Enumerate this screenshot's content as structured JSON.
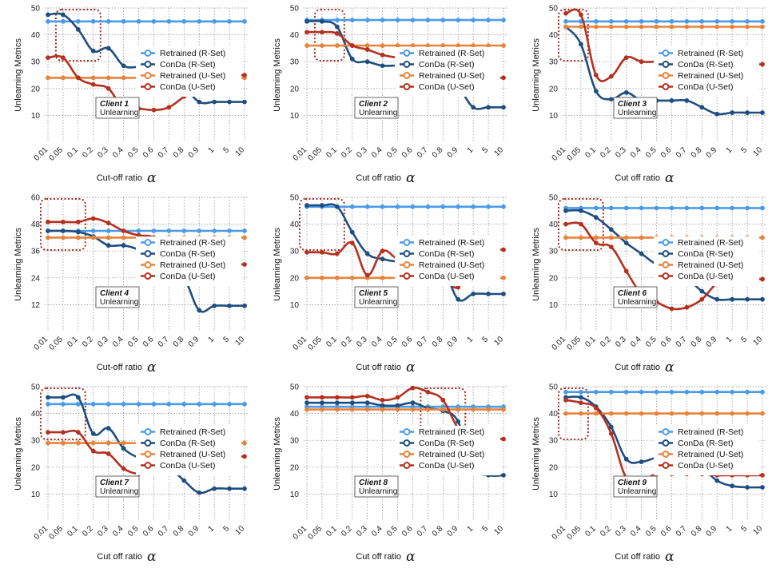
{
  "colors": {
    "retrained_r": "#4a9be8",
    "conda_r": "#1f4e80",
    "retrained_u": "#e8833a",
    "conda_u": "#b5301f",
    "highlight_box": "#a82a20",
    "grid": "#8a8a8a"
  },
  "chart_data": [
    {
      "type": "line",
      "title": "",
      "xlabel": "Cut-off ratio",
      "xlabel_symbol": "α",
      "ylabel": "Unlearning Metrics",
      "categories": [
        "0.01",
        "0.05",
        "0.1",
        "0.2",
        "0.3",
        "0.4",
        "0.5",
        "0.6",
        "0.7",
        "0.8",
        "0.9",
        "1",
        "5",
        "10"
      ],
      "yticks": [
        10,
        20,
        30,
        40,
        50
      ],
      "ylim": [
        0,
        50
      ],
      "annotation": {
        "line1": "Client 1",
        "line2": "Unlearning"
      },
      "highlight": [
        0.05,
        0.2
      ],
      "series": [
        {
          "name": "Retrained (R-Set)",
          "color_key": "retrained_r",
          "values": [
            45,
            45,
            45,
            45,
            45,
            45,
            45,
            45,
            45,
            45,
            45,
            45,
            45,
            45
          ]
        },
        {
          "name": "ConDa (R-Set)",
          "color_key": "conda_r",
          "values": [
            47.5,
            47.5,
            42,
            34,
            35,
            28.5,
            28,
            27.5,
            25.5,
            21,
            15,
            15,
            15,
            15
          ]
        },
        {
          "name": "Retrained (U-Set)",
          "color_key": "retrained_u",
          "values": [
            24,
            24,
            24,
            24,
            24,
            24,
            24,
            24,
            24,
            24,
            24,
            24,
            24,
            24
          ]
        },
        {
          "name": "ConDa (U-Set)",
          "color_key": "conda_u",
          "values": [
            31.5,
            31.5,
            24,
            21.5,
            20,
            12.5,
            12.5,
            12,
            13,
            17,
            21,
            25,
            25,
            25
          ]
        }
      ]
    },
    {
      "type": "line",
      "title": "",
      "xlabel": "Cut off ratio",
      "xlabel_symbol": "α",
      "ylabel": "Unlearning Metrics",
      "categories": [
        "0.01",
        "0.05",
        "0.1",
        "0.2",
        "0.3",
        "0.4",
        "0.5",
        "0.6",
        "0.7",
        "0.8",
        "0.9",
        "1",
        "5",
        "10"
      ],
      "yticks": [
        10,
        20,
        30,
        40,
        50
      ],
      "ylim": [
        0,
        50
      ],
      "annotation": {
        "line1": "Client 2",
        "line2": "Unlearning"
      },
      "highlight": [
        0.05,
        0.1
      ],
      "series": [
        {
          "name": "Retrained (R-Set)",
          "color_key": "retrained_r",
          "values": [
            45.5,
            45.5,
            45.5,
            45.5,
            45.5,
            45.5,
            45.5,
            45.5,
            45.5,
            45.5,
            45.5,
            45.5,
            45.5,
            45.5
          ]
        },
        {
          "name": "ConDa (R-Set)",
          "color_key": "conda_r",
          "values": [
            45,
            45,
            43,
            31,
            30,
            28.5,
            28.5,
            27.5,
            29,
            27,
            21,
            13,
            13,
            13
          ]
        },
        {
          "name": "Retrained (U-Set)",
          "color_key": "retrained_u",
          "values": [
            36,
            36,
            36,
            36,
            36,
            36,
            36,
            36,
            36,
            36,
            36,
            36,
            36,
            36
          ]
        },
        {
          "name": "ConDa (U-Set)",
          "color_key": "conda_u",
          "values": [
            41,
            41,
            40.5,
            36,
            34.5,
            32.5,
            31.5,
            31,
            31,
            32,
            21,
            24.5,
            24,
            24
          ]
        }
      ]
    },
    {
      "type": "line",
      "title": "",
      "xlabel": "Cut off ratio",
      "xlabel_symbol": "α",
      "ylabel": "Unlearning Metrics",
      "categories": [
        "0.01",
        "0.05",
        "0.1",
        "0.2",
        "0.3",
        "0.4",
        "0.5",
        "0.6",
        "0.7",
        "0.8",
        "0.9",
        "1",
        "5",
        "10"
      ],
      "yticks": [
        10,
        20,
        30,
        40,
        50
      ],
      "ylim": [
        0,
        50
      ],
      "annotation": {
        "line1": "Client 3",
        "line2": "Unlearning"
      },
      "highlight": [
        0.01,
        0.05
      ],
      "series": [
        {
          "name": "Retrained (R-Set)",
          "color_key": "retrained_r",
          "values": [
            45,
            45,
            45,
            45,
            45,
            45,
            45,
            45,
            45,
            45,
            45,
            45,
            45,
            45
          ]
        },
        {
          "name": "ConDa (R-Set)",
          "color_key": "conda_r",
          "values": [
            43,
            36.5,
            19,
            16,
            18.5,
            15.5,
            15.5,
            15.5,
            15.5,
            13,
            10.5,
            11,
            11,
            11
          ]
        },
        {
          "name": "Retrained (U-Set)",
          "color_key": "retrained_u",
          "values": [
            43,
            43,
            43,
            43,
            43,
            43,
            43,
            43,
            43,
            43,
            43,
            43,
            43,
            43
          ]
        },
        {
          "name": "ConDa (U-Set)",
          "color_key": "conda_u",
          "values": [
            48,
            47.5,
            25,
            24.5,
            31.5,
            30,
            30,
            30,
            30,
            29,
            29,
            29,
            29,
            29
          ]
        }
      ]
    },
    {
      "type": "line",
      "title": "",
      "xlabel": "Cut-off ratio",
      "xlabel_symbol": "α",
      "ylabel": "Unlearning Metrics",
      "categories": [
        "0.01",
        "0.05",
        "0.1",
        "0.2",
        "0.3",
        "0.4",
        "0.5",
        "0.6",
        "0.7",
        "0.8",
        "0.9",
        "1",
        "5",
        "10"
      ],
      "yticks": [
        12,
        24,
        36,
        48,
        60
      ],
      "ylim": [
        0,
        60
      ],
      "annotation": {
        "line1": "Client 4",
        "line2": "Unlearning"
      },
      "highlight": [
        0.01,
        0.1
      ],
      "series": [
        {
          "name": "Retrained (R-Set)",
          "color_key": "retrained_r",
          "values": [
            45,
            45,
            45,
            45,
            45,
            45,
            45,
            45,
            45,
            45,
            45,
            45,
            45,
            45
          ]
        },
        {
          "name": "ConDa (R-Set)",
          "color_key": "conda_r",
          "values": [
            45,
            45,
            44.5,
            42.5,
            38.5,
            38.5,
            36.5,
            32,
            28,
            24,
            9.5,
            11.5,
            11.5,
            11.5
          ]
        },
        {
          "name": "Retrained (U-Set)",
          "color_key": "retrained_u",
          "values": [
            42,
            42,
            42,
            42,
            42,
            42,
            42,
            42,
            42,
            42,
            42,
            42,
            42,
            42
          ]
        },
        {
          "name": "ConDa (U-Set)",
          "color_key": "conda_u",
          "values": [
            49,
            49,
            49,
            50.5,
            48.5,
            45,
            43,
            42,
            35,
            30,
            30,
            30,
            30,
            30
          ]
        }
      ]
    },
    {
      "type": "line",
      "title": "",
      "xlabel": "Cut off ratio",
      "xlabel_symbol": "α",
      "ylabel": "Unlearning Metrics",
      "categories": [
        "0.01",
        "0.05",
        "0.1",
        "0.2",
        "0.3",
        "0.4",
        "0.5",
        "0.6",
        "0.7",
        "0.8",
        "0.9",
        "1",
        "5",
        "10"
      ],
      "yticks": [
        10,
        20,
        30,
        40,
        50
      ],
      "ylim": [
        0,
        50
      ],
      "annotation": {
        "line1": "Client 5",
        "line2": "Unlearning"
      },
      "highlight": [
        0.01,
        0.1
      ],
      "series": [
        {
          "name": "Retrained (R-Set)",
          "color_key": "retrained_r",
          "values": [
            46.5,
            46.5,
            46.5,
            46.5,
            46.5,
            46.5,
            46.5,
            46.5,
            46.5,
            46.5,
            46.5,
            46.5,
            46.5,
            46.5
          ]
        },
        {
          "name": "ConDa (R-Set)",
          "color_key": "conda_r",
          "values": [
            47,
            47,
            46.5,
            37,
            29,
            27,
            26,
            26,
            26,
            24,
            12,
            14,
            14,
            14
          ]
        },
        {
          "name": "Retrained (U-Set)",
          "color_key": "retrained_u",
          "values": [
            20,
            20,
            20,
            20,
            20,
            20,
            20,
            20,
            20,
            20,
            20,
            20,
            20,
            20
          ]
        },
        {
          "name": "ConDa (U-Set)",
          "color_key": "conda_u",
          "values": [
            29.5,
            29.5,
            29,
            33,
            21,
            30,
            27,
            26,
            24,
            22,
            16.5,
            30.5,
            30.5,
            30.5
          ]
        }
      ]
    },
    {
      "type": "line",
      "title": "",
      "xlabel": "Cut off ratio",
      "xlabel_symbol": "α",
      "ylabel": "Unlearning Metrics",
      "categories": [
        "0.01",
        "0.05",
        "0.1",
        "0.2",
        "0.3",
        "0.4",
        "0.5",
        "0.6",
        "0.7",
        "0.8",
        "0.9",
        "1",
        "5",
        "10"
      ],
      "yticks": [
        10,
        20,
        30,
        40,
        50
      ],
      "ylim": [
        0,
        50
      ],
      "annotation": {
        "line1": "Client 6",
        "line2": "Unlearning"
      },
      "highlight": [
        0.01,
        0.1
      ],
      "series": [
        {
          "name": "Retrained (R-Set)",
          "color_key": "retrained_r",
          "values": [
            46,
            46,
            46,
            46,
            46,
            46,
            46,
            46,
            46,
            46,
            46,
            46,
            46,
            46
          ]
        },
        {
          "name": "ConDa (R-Set)",
          "color_key": "conda_r",
          "values": [
            45,
            45,
            42.5,
            38,
            33,
            29,
            25,
            23,
            20,
            15,
            12,
            12,
            12,
            12
          ]
        },
        {
          "name": "Retrained (U-Set)",
          "color_key": "retrained_u",
          "values": [
            35,
            35,
            35,
            35,
            35,
            35,
            35,
            35,
            35,
            35,
            35,
            35,
            35,
            35
          ]
        },
        {
          "name": "ConDa (U-Set)",
          "color_key": "conda_u",
          "values": [
            40,
            40,
            33,
            31.5,
            22.5,
            14,
            11,
            8.5,
            9,
            12,
            18,
            19.5,
            19.5,
            19.5
          ]
        }
      ]
    },
    {
      "type": "line",
      "title": "",
      "xlabel": "Cut off ratio",
      "xlabel_symbol": "α",
      "ylabel": "Unlearning Metrics",
      "categories": [
        "0.01",
        "0.05",
        "0.1",
        "0.2",
        "0.3",
        "0.4",
        "0.5",
        "0.6",
        "0.7",
        "0.8",
        "0.9",
        "1",
        "5",
        "10"
      ],
      "yticks": [
        10,
        20,
        30,
        40,
        50
      ],
      "ylim": [
        0,
        50
      ],
      "annotation": {
        "line1": "Client 7",
        "line2": "Unlearning"
      },
      "highlight": [
        0.01,
        0.1
      ],
      "series": [
        {
          "name": "Retrained (R-Set)",
          "color_key": "retrained_r",
          "values": [
            43.5,
            43.5,
            43.5,
            43.5,
            43.5,
            43.5,
            43.5,
            43.5,
            43.5,
            43.5,
            43.5,
            43.5,
            43.5,
            43.5
          ]
        },
        {
          "name": "ConDa (R-Set)",
          "color_key": "conda_r",
          "values": [
            46,
            46,
            46,
            32.5,
            34.5,
            27,
            23.5,
            22,
            20,
            15,
            10.5,
            12,
            12,
            12
          ]
        },
        {
          "name": "Retrained (U-Set)",
          "color_key": "retrained_u",
          "values": [
            29,
            29,
            29,
            29,
            29,
            29,
            29,
            29,
            29,
            29,
            29,
            29,
            29,
            29
          ]
        },
        {
          "name": "ConDa (U-Set)",
          "color_key": "conda_u",
          "values": [
            33,
            33,
            33,
            26,
            25,
            19.5,
            17.5,
            18,
            19,
            21,
            23.5,
            24,
            24,
            24
          ]
        }
      ]
    },
    {
      "type": "line",
      "title": "",
      "xlabel": "Cut off ratio",
      "xlabel_symbol": "α",
      "ylabel": "Unlearning Metrics",
      "categories": [
        "0.01",
        "0.05",
        "0.1",
        "0.2",
        "0.3",
        "0.4",
        "0.5",
        "0.6",
        "0.7",
        "0.8",
        "0.9",
        "1",
        "5",
        "10"
      ],
      "yticks": [
        10,
        20,
        30,
        40,
        50
      ],
      "ylim": [
        0,
        50
      ],
      "annotation": {
        "line1": "Client 8",
        "line2": "Unlearning"
      },
      "highlight": [
        0.7,
        0.9
      ],
      "series": [
        {
          "name": "Retrained (R-Set)",
          "color_key": "retrained_r",
          "values": [
            42.5,
            42.5,
            42.5,
            42.5,
            42.5,
            42.5,
            42.5,
            42.5,
            42.5,
            42.5,
            42.5,
            42.5,
            42.5,
            42.5
          ]
        },
        {
          "name": "ConDa (R-Set)",
          "color_key": "conda_r",
          "values": [
            44,
            44,
            44,
            44,
            44,
            43,
            43,
            44,
            42,
            41,
            37,
            20,
            17,
            17
          ]
        },
        {
          "name": "Retrained (U-Set)",
          "color_key": "retrained_u",
          "values": [
            41.5,
            41.5,
            41.5,
            41.5,
            41.5,
            41.5,
            41.5,
            41.5,
            41.5,
            41.5,
            41.5,
            41.5,
            41.5,
            41.5
          ]
        },
        {
          "name": "ConDa (U-Set)",
          "color_key": "conda_u",
          "values": [
            46,
            46,
            46,
            46,
            46.5,
            45,
            46,
            49.5,
            48,
            45,
            34.5,
            30,
            30.5,
            30.5
          ]
        }
      ]
    },
    {
      "type": "line",
      "title": "",
      "xlabel": "Cut off ratio",
      "xlabel_symbol": "α",
      "ylabel": "Unlearning Metrics",
      "categories": [
        "0.01",
        "0.05",
        "0.1",
        "0.2",
        "0.3",
        "0.4",
        "0.5",
        "0.6",
        "0.7",
        "0.8",
        "0.9",
        "1",
        "5",
        "10"
      ],
      "yticks": [
        10,
        20,
        30,
        40,
        50
      ],
      "ylim": [
        0,
        50
      ],
      "annotation": {
        "line1": "Client 9",
        "line2": "Unlearning"
      },
      "highlight": [
        0.01,
        0.05
      ],
      "series": [
        {
          "name": "Retrained (R-Set)",
          "color_key": "retrained_r",
          "values": [
            48,
            48,
            48,
            48,
            48,
            48,
            48,
            48,
            48,
            48,
            48,
            48,
            48,
            48
          ]
        },
        {
          "name": "ConDa (R-Set)",
          "color_key": "conda_r",
          "values": [
            46,
            46,
            42.5,
            35,
            23,
            22,
            23.5,
            23.5,
            23.5,
            20,
            15,
            13,
            12.5,
            12.5
          ]
        },
        {
          "name": "Retrained (U-Set)",
          "color_key": "retrained_u",
          "values": [
            40,
            40,
            40,
            40,
            40,
            40,
            40,
            40,
            40,
            40,
            40,
            40,
            40,
            40
          ]
        },
        {
          "name": "ConDa (U-Set)",
          "color_key": "conda_u",
          "values": [
            45,
            44,
            42,
            32.5,
            16,
            15,
            17.5,
            17.5,
            17.5,
            17.5,
            17,
            17,
            17,
            17
          ]
        }
      ]
    }
  ]
}
